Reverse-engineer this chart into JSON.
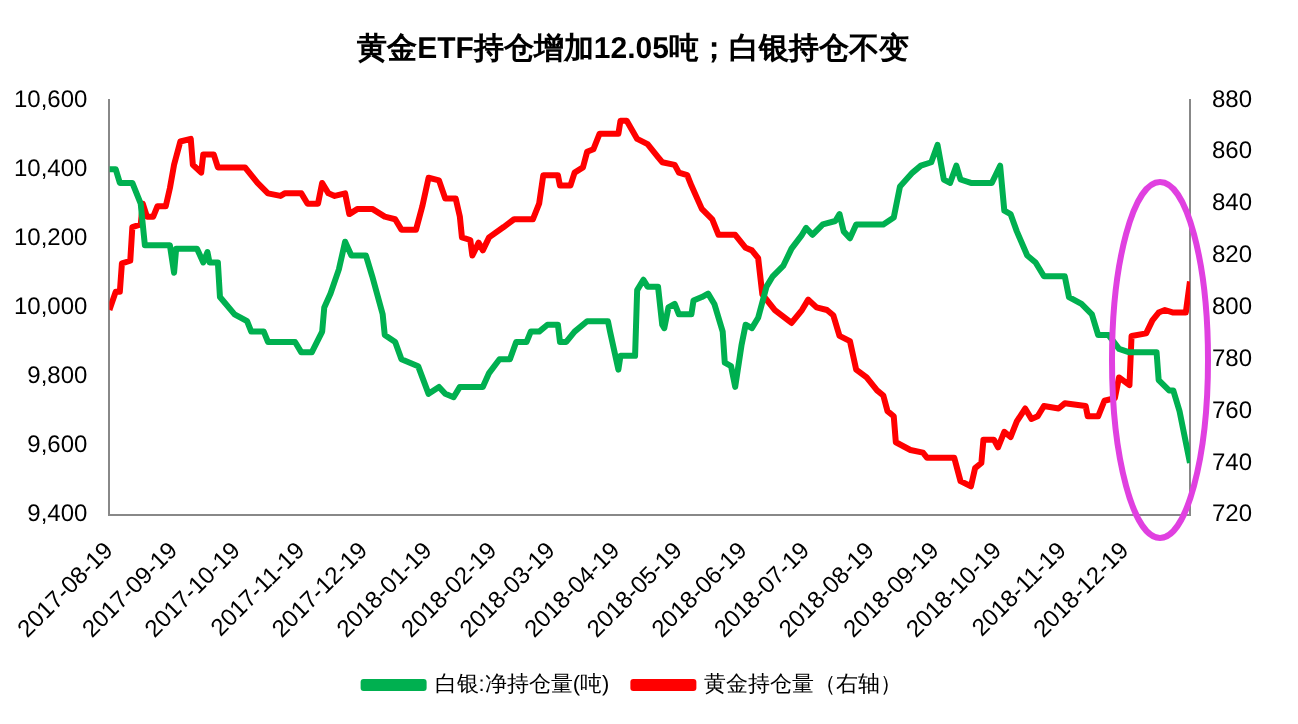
{
  "chart_data": {
    "type": "line",
    "title": "黄金ETF持仓增加12.05吨；白银持仓不变",
    "xlim": [
      "2017-08-19",
      "2019-01-19"
    ],
    "xticks": [
      "2017-08-19",
      "2017-09-19",
      "2017-10-19",
      "2017-11-19",
      "2017-12-19",
      "2018-01-19",
      "2018-02-19",
      "2018-03-19",
      "2018-04-19",
      "2018-05-19",
      "2018-06-19",
      "2018-07-19",
      "2018-08-19",
      "2018-09-19",
      "2018-10-19",
      "2018-11-19",
      "2018-12-19"
    ],
    "ylim": [
      9400,
      10600
    ],
    "yticks": [
      {
        "value": 9400,
        "label": "9,400"
      },
      {
        "value": 9600,
        "label": "9,600"
      },
      {
        "value": 9800,
        "label": "9,800"
      },
      {
        "value": 10000,
        "label": "10,000"
      },
      {
        "value": 10200,
        "label": "10,200"
      },
      {
        "value": 10400,
        "label": "10,400"
      },
      {
        "value": 10600,
        "label": "10,600"
      }
    ],
    "y2lim": [
      720,
      880
    ],
    "y2ticks": [
      720,
      740,
      760,
      780,
      800,
      820,
      840,
      860,
      880
    ],
    "grid": false,
    "legend": "bottom",
    "marker": "none",
    "line_style": "solid",
    "series": [
      {
        "name": "白银:净持仓量(吨)",
        "color": "#00b050",
        "x": [
          "2017-08-19",
          "2017-08-22",
          "2017-08-24",
          "2017-08-30",
          "2017-09-03",
          "2017-09-05",
          "2017-09-17",
          "2017-09-19",
          "2017-09-20",
          "2017-09-30",
          "2017-10-03",
          "2017-10-05",
          "2017-10-06",
          "2017-10-10",
          "2017-10-11",
          "2017-10-18",
          "2017-10-24",
          "2017-10-26",
          "2017-11-01",
          "2017-11-03",
          "2017-11-16",
          "2017-11-19",
          "2017-11-24",
          "2017-11-29",
          "2017-11-30",
          "2017-12-03",
          "2017-12-07",
          "2017-12-10",
          "2017-12-13",
          "2017-12-20",
          "2017-12-23",
          "2017-12-28",
          "2017-12-29",
          "2018-01-03",
          "2018-01-06",
          "2018-01-14",
          "2018-01-19",
          "2018-01-24",
          "2018-01-27",
          "2018-01-31",
          "2018-02-03",
          "2018-02-14",
          "2018-02-17",
          "2018-02-22",
          "2018-02-27",
          "2018-03-02",
          "2018-03-07",
          "2018-03-09",
          "2018-03-13",
          "2018-03-17",
          "2018-03-22",
          "2018-03-23",
          "2018-03-26",
          "2018-03-30",
          "2018-04-05",
          "2018-04-15",
          "2018-04-16",
          "2018-04-20",
          "2018-04-21",
          "2018-04-28",
          "2018-04-29",
          "2018-05-02",
          "2018-05-04",
          "2018-05-09",
          "2018-05-11",
          "2018-05-12",
          "2018-05-14",
          "2018-05-17",
          "2018-05-19",
          "2018-05-25",
          "2018-05-26",
          "2018-05-30",
          "2018-06-02",
          "2018-06-05",
          "2018-06-09",
          "2018-06-10",
          "2018-06-13",
          "2018-06-15",
          "2018-06-18",
          "2018-06-20",
          "2018-06-23",
          "2018-06-26",
          "2018-06-30",
          "2018-07-03",
          "2018-07-08",
          "2018-07-12",
          "2018-07-17",
          "2018-07-19",
          "2018-07-22",
          "2018-07-27",
          "2018-08-02",
          "2018-08-04",
          "2018-08-06",
          "2018-08-09",
          "2018-08-12",
          "2018-08-14",
          "2018-08-25",
          "2018-08-30",
          "2018-09-02",
          "2018-09-05",
          "2018-09-08",
          "2018-09-12",
          "2018-09-17",
          "2018-09-20",
          "2018-09-23",
          "2018-09-26",
          "2018-09-29",
          "2018-10-01",
          "2018-10-06",
          "2018-10-16",
          "2018-10-20",
          "2018-10-22",
          "2018-10-25",
          "2018-10-28",
          "2018-11-02",
          "2018-11-06",
          "2018-11-10",
          "2018-11-15",
          "2018-11-20",
          "2018-11-22",
          "2018-11-28",
          "2018-12-03",
          "2018-12-06",
          "2018-12-11",
          "2018-12-16",
          "2018-12-21",
          "2018-12-29",
          "2019-01-03",
          "2019-01-04",
          "2019-01-09",
          "2019-01-11",
          "2019-01-14",
          "2019-01-19"
        ],
        "values": [
          10400,
          10400,
          10360,
          10360,
          10300,
          10180,
          10180,
          10100,
          10170,
          10170,
          10130,
          10160,
          10130,
          10130,
          10030,
          9980,
          9960,
          9930,
          9930,
          9900,
          9900,
          9870,
          9870,
          9930,
          10000,
          10040,
          10110,
          10190,
          10150,
          10150,
          10090,
          9980,
          9920,
          9900,
          9850,
          9830,
          9750,
          9770,
          9750,
          9740,
          9770,
          9770,
          9810,
          9850,
          9850,
          9900,
          9900,
          9930,
          9930,
          9950,
          9950,
          9900,
          9900,
          9930,
          9960,
          9960,
          9930,
          9820,
          9860,
          9860,
          10050,
          10080,
          10060,
          10060,
          9950,
          9940,
          10000,
          10010,
          9980,
          9980,
          10020,
          10030,
          10040,
          10010,
          9930,
          9840,
          9830,
          9770,
          9890,
          9950,
          9940,
          9970,
          10060,
          10090,
          10120,
          10170,
          10210,
          10230,
          10210,
          10240,
          10250,
          10270,
          10220,
          10200,
          10240,
          10240,
          10240,
          10260,
          10350,
          10370,
          10390,
          10410,
          10420,
          10470,
          10370,
          10360,
          10410,
          10370,
          10360,
          10360,
          10410,
          10280,
          10270,
          10220,
          10150,
          10130,
          10090,
          10090,
          10090,
          10030,
          10010,
          9980,
          9920,
          9920,
          9880,
          9870,
          9870,
          9870,
          9790,
          9760,
          9760,
          9700,
          9550
        ]
      },
      {
        "name": "黄金持仓量（右轴）",
        "color": "#ff0000",
        "axis": "y2",
        "x": [
          "2017-08-19",
          "2017-08-22",
          "2017-08-24",
          "2017-08-25",
          "2017-08-29",
          "2017-08-30",
          "2017-09-03",
          "2017-09-04",
          "2017-09-06",
          "2017-09-09",
          "2017-09-11",
          "2017-09-15",
          "2017-09-17",
          "2017-09-19",
          "2017-09-22",
          "2017-09-27",
          "2017-09-28",
          "2017-10-02",
          "2017-10-03",
          "2017-10-08",
          "2017-10-10",
          "2017-10-23",
          "2017-10-26",
          "2017-10-29",
          "2017-11-03",
          "2017-11-09",
          "2017-11-11",
          "2017-11-19",
          "2017-11-22",
          "2017-11-27",
          "2017-11-29",
          "2017-12-02",
          "2017-12-05",
          "2017-12-10",
          "2017-12-12",
          "2017-12-16",
          "2017-12-23",
          "2017-12-29",
          "2018-01-03",
          "2018-01-06",
          "2018-01-13",
          "2018-01-16",
          "2018-01-19",
          "2018-01-24",
          "2018-01-27",
          "2018-02-01",
          "2018-02-03",
          "2018-02-04",
          "2018-02-08",
          "2018-02-09",
          "2018-02-12",
          "2018-02-14",
          "2018-02-17",
          "2018-02-24",
          "2018-03-01",
          "2018-03-10",
          "2018-03-13",
          "2018-03-15",
          "2018-03-22",
          "2018-03-23",
          "2018-03-28",
          "2018-03-30",
          "2018-04-03",
          "2018-04-05",
          "2018-04-08",
          "2018-04-11",
          "2018-04-20",
          "2018-04-21",
          "2018-04-24",
          "2018-04-29",
          "2018-05-04",
          "2018-05-09",
          "2018-05-11",
          "2018-05-17",
          "2018-05-19",
          "2018-05-23",
          "2018-05-25",
          "2018-05-30",
          "2018-06-04",
          "2018-06-07",
          "2018-06-15",
          "2018-06-20",
          "2018-06-23",
          "2018-06-26",
          "2018-06-28",
          "2018-06-30",
          "2018-07-04",
          "2018-07-12",
          "2018-07-17",
          "2018-07-20",
          "2018-07-24",
          "2018-07-29",
          "2018-08-01",
          "2018-08-04",
          "2018-08-09",
          "2018-08-12",
          "2018-08-17",
          "2018-08-22",
          "2018-08-25",
          "2018-08-27",
          "2018-08-30",
          "2018-08-31",
          "2018-09-07",
          "2018-09-13",
          "2018-09-15",
          "2018-09-28",
          "2018-10-01",
          "2018-10-06",
          "2018-10-08",
          "2018-10-11",
          "2018-10-12",
          "2018-10-17",
          "2018-10-19",
          "2018-10-22",
          "2018-10-25",
          "2018-10-28",
          "2018-11-01",
          "2018-11-04",
          "2018-11-07",
          "2018-11-10",
          "2018-11-17",
          "2018-11-20",
          "2018-11-30",
          "2018-12-01",
          "2018-12-06",
          "2018-12-09",
          "2018-12-14",
          "2018-12-16",
          "2018-12-21",
          "2018-12-22",
          "2018-12-29",
          "2019-01-01",
          "2019-01-04",
          "2019-01-07",
          "2019-01-11",
          "2019-01-17",
          "2019-01-19"
        ],
        "values": [
          799,
          806,
          806,
          817,
          818,
          831,
          832,
          840,
          835,
          835,
          839,
          839,
          846,
          855,
          864,
          865,
          855,
          852,
          859,
          859,
          854,
          854,
          851,
          848,
          844,
          843,
          844,
          844,
          840,
          840,
          848,
          844,
          843,
          844,
          836,
          838,
          838,
          835,
          834,
          830,
          830,
          839,
          850,
          849,
          842,
          842,
          835,
          827,
          826,
          820,
          825,
          822,
          827,
          831,
          834,
          834,
          840,
          851,
          851,
          847,
          847,
          852,
          854,
          860,
          861,
          867,
          867,
          872,
          872,
          865,
          863,
          858,
          856,
          855,
          852,
          851,
          847,
          838,
          834,
          828,
          828,
          823,
          822,
          819,
          805,
          803,
          799,
          794,
          799,
          803,
          800,
          799,
          797,
          789,
          787,
          776,
          773,
          768,
          766,
          760,
          758,
          748,
          745,
          744,
          742,
          742,
          733,
          731,
          738,
          740,
          749,
          749,
          746,
          752,
          750,
          756,
          761,
          757,
          758,
          762,
          761,
          763,
          762,
          758,
          758,
          764,
          765,
          773,
          770,
          789,
          790,
          795,
          798,
          799,
          798,
          798,
          810
        ]
      }
    ]
  }
}
